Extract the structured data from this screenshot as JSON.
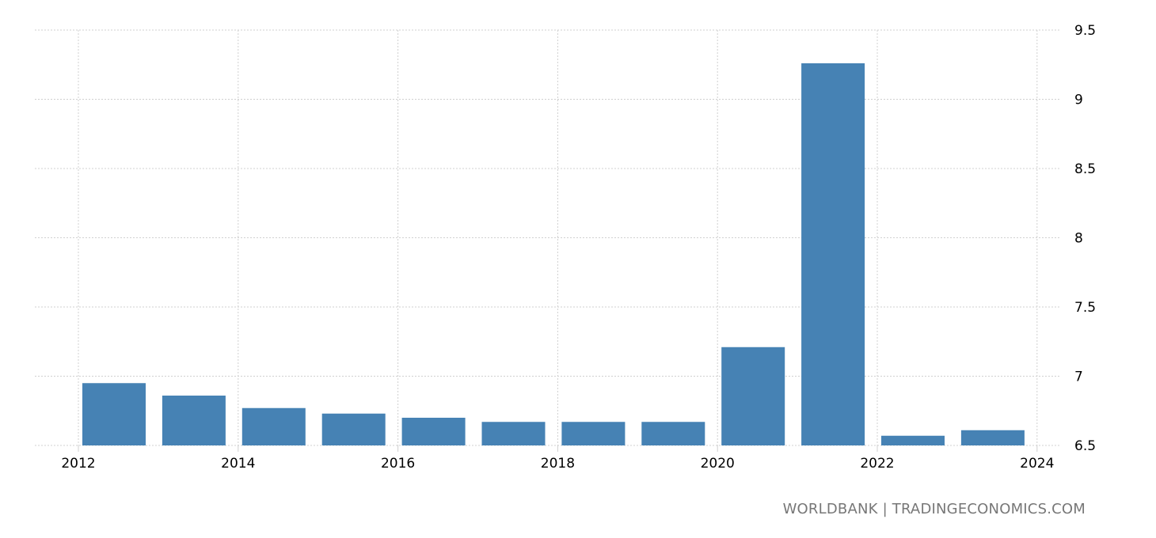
{
  "chart_data": {
    "type": "bar",
    "categories": [
      "2012",
      "2013",
      "2014",
      "2015",
      "2016",
      "2017",
      "2018",
      "2019",
      "2020",
      "2021",
      "2022",
      "2023"
    ],
    "values": [
      6.95,
      6.86,
      6.77,
      6.73,
      6.7,
      6.67,
      6.67,
      6.67,
      7.21,
      9.26,
      6.57,
      6.61
    ],
    "title": "",
    "xlabel": "",
    "ylabel": "",
    "ylim": [
      6.5,
      9.5
    ],
    "yticks": [
      "6.5",
      "7",
      "7.5",
      "8",
      "8.5",
      "9",
      "9.5"
    ],
    "xticks": [
      "2012",
      "2014",
      "2016",
      "2018",
      "2020",
      "2022",
      "2024"
    ],
    "xlim": [
      2012,
      2024
    ],
    "y_axis_side": "right",
    "grid": true,
    "bar_color": "#4682b4"
  },
  "source": "WORLDBANK | TRADINGECONOMICS.COM"
}
